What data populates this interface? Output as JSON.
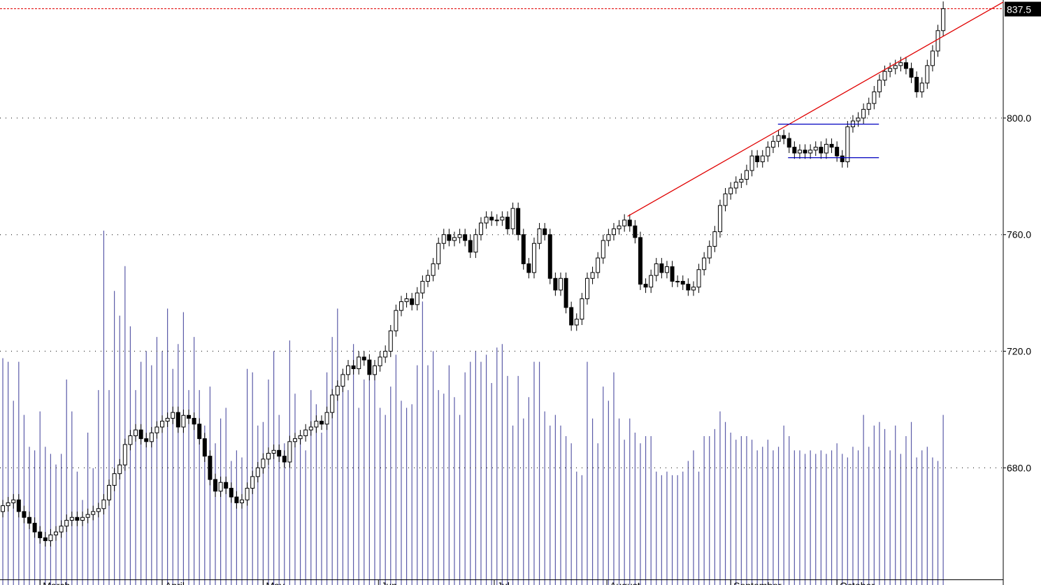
{
  "chart_data": {
    "type": "candlestick",
    "open": [
      665,
      667,
      668,
      669,
      665,
      663,
      661,
      658,
      656,
      655,
      657,
      658,
      660,
      662,
      663,
      662,
      663,
      664,
      665,
      666,
      669,
      674,
      678,
      681,
      688,
      691,
      693,
      690,
      689,
      692,
      694,
      696,
      697,
      699,
      694,
      698,
      697,
      695,
      690,
      684,
      676,
      672,
      675,
      673,
      670,
      668,
      669,
      673,
      677,
      680,
      683,
      685,
      686,
      684,
      682,
      689,
      690,
      691,
      693,
      694,
      696,
      695,
      699,
      705,
      708,
      712,
      715,
      714,
      718,
      717,
      712,
      715,
      718,
      720,
      727,
      734,
      737,
      738,
      736,
      740,
      744,
      746,
      750,
      757,
      760,
      758,
      759,
      760,
      758,
      754,
      760,
      764,
      766,
      765,
      765,
      766,
      762,
      769,
      760,
      750,
      747,
      757,
      762,
      760,
      745,
      741,
      745,
      735,
      729,
      731,
      738,
      745,
      747,
      752,
      758,
      760,
      762,
      763,
      765,
      763,
      759,
      743,
      742,
      746,
      750,
      747,
      749,
      744,
      744,
      743,
      741,
      742,
      748,
      752,
      756,
      761,
      770,
      774,
      776,
      778,
      779,
      782,
      787,
      785,
      787,
      790,
      792,
      794,
      793,
      790,
      788,
      789,
      788,
      789,
      790,
      788,
      791,
      790,
      787,
      785,
      797,
      799,
      800,
      803,
      805,
      809,
      813,
      816,
      817,
      818,
      819,
      817,
      814,
      809,
      812,
      818,
      823,
      830
    ],
    "high": [
      669,
      670,
      671,
      671,
      667,
      665,
      663,
      660,
      658,
      659,
      660,
      662,
      664,
      665,
      665,
      665,
      666,
      667,
      668,
      671,
      676,
      680,
      683,
      690,
      693,
      695,
      695,
      692,
      694,
      696,
      698,
      699,
      701,
      701,
      700,
      700,
      699,
      697,
      692,
      686,
      678,
      677,
      677,
      675,
      672,
      671,
      675,
      679,
      682,
      685,
      687,
      688,
      688,
      686,
      691,
      692,
      693,
      695,
      696,
      698,
      698,
      701,
      707,
      710,
      714,
      717,
      717,
      720,
      720,
      719,
      717,
      720,
      722,
      729,
      736,
      739,
      740,
      740,
      742,
      746,
      748,
      752,
      759,
      762,
      762,
      761,
      762,
      762,
      760,
      762,
      766,
      768,
      768,
      767,
      768,
      768,
      771,
      771,
      762,
      752,
      759,
      764,
      764,
      762,
      747,
      747,
      747,
      737,
      733,
      740,
      747,
      749,
      754,
      760,
      762,
      764,
      765,
      767,
      767,
      765,
      761,
      745,
      748,
      752,
      752,
      751,
      751,
      746,
      746,
      745,
      744,
      750,
      754,
      758,
      763,
      772,
      776,
      778,
      780,
      781,
      784,
      789,
      789,
      789,
      792,
      794,
      796,
      796,
      795,
      792,
      791,
      791,
      791,
      792,
      792,
      793,
      793,
      792,
      789,
      799,
      801,
      802,
      805,
      807,
      811,
      815,
      818,
      819,
      820,
      821,
      821,
      819,
      816,
      814,
      820,
      825,
      832,
      840
    ],
    "low": [
      663,
      665,
      666,
      663,
      661,
      659,
      656,
      654,
      653,
      653,
      655,
      656,
      658,
      660,
      660,
      660,
      661,
      662,
      663,
      664,
      667,
      672,
      676,
      679,
      686,
      689,
      688,
      687,
      687,
      690,
      692,
      694,
      695,
      692,
      692,
      695,
      693,
      688,
      682,
      674,
      670,
      670,
      671,
      668,
      666,
      666,
      667,
      671,
      675,
      678,
      681,
      683,
      682,
      680,
      680,
      687,
      688,
      689,
      691,
      692,
      693,
      693,
      697,
      703,
      706,
      710,
      712,
      712,
      715,
      710,
      710,
      713,
      716,
      718,
      725,
      732,
      735,
      734,
      734,
      738,
      742,
      744,
      748,
      755,
      756,
      756,
      757,
      756,
      752,
      752,
      758,
      762,
      763,
      763,
      763,
      760,
      760,
      758,
      748,
      745,
      745,
      755,
      758,
      743,
      739,
      739,
      733,
      727,
      727,
      729,
      736,
      743,
      745,
      750,
      756,
      758,
      760,
      761,
      761,
      757,
      741,
      740,
      740,
      744,
      745,
      745,
      742,
      742,
      741,
      739,
      739,
      740,
      746,
      750,
      754,
      759,
      768,
      772,
      774,
      776,
      777,
      780,
      783,
      783,
      785,
      788,
      790,
      791,
      788,
      786,
      786,
      786,
      786,
      787,
      786,
      786,
      788,
      785,
      783,
      783,
      795,
      797,
      798,
      801,
      803,
      807,
      811,
      814,
      815,
      816,
      815,
      812,
      807,
      807,
      810,
      816,
      821,
      828
    ],
    "close": [
      667,
      668,
      669,
      665,
      663,
      661,
      658,
      656,
      655,
      657,
      658,
      660,
      662,
      663,
      662,
      663,
      664,
      665,
      666,
      669,
      674,
      678,
      681,
      688,
      691,
      693,
      690,
      689,
      692,
      694,
      696,
      697,
      699,
      694,
      698,
      697,
      695,
      690,
      684,
      676,
      672,
      675,
      673,
      670,
      668,
      669,
      673,
      677,
      680,
      683,
      685,
      686,
      684,
      682,
      689,
      690,
      691,
      693,
      694,
      696,
      695,
      699,
      705,
      708,
      712,
      715,
      714,
      718,
      717,
      712,
      715,
      718,
      720,
      727,
      734,
      737,
      738,
      736,
      740,
      744,
      746,
      750,
      757,
      760,
      758,
      759,
      760,
      758,
      754,
      760,
      764,
      766,
      765,
      765,
      766,
      762,
      769,
      760,
      750,
      747,
      757,
      762,
      760,
      745,
      741,
      745,
      735,
      729,
      731,
      738,
      745,
      747,
      752,
      758,
      760,
      762,
      763,
      765,
      763,
      759,
      743,
      742,
      746,
      750,
      747,
      749,
      744,
      744,
      743,
      741,
      742,
      748,
      752,
      756,
      761,
      770,
      774,
      776,
      778,
      779,
      782,
      787,
      785,
      787,
      790,
      792,
      794,
      793,
      790,
      788,
      789,
      788,
      789,
      790,
      788,
      791,
      790,
      787,
      785,
      797,
      799,
      800,
      803,
      805,
      809,
      813,
      816,
      817,
      818,
      819,
      817,
      814,
      809,
      812,
      818,
      823,
      830,
      837.5
    ],
    "volume": [
      64,
      63,
      52,
      63,
      48,
      39,
      38,
      49,
      39,
      37,
      34,
      37,
      58,
      49,
      32,
      24,
      43,
      33,
      55,
      100,
      55,
      83,
      76,
      90,
      73,
      55,
      63,
      66,
      62,
      70,
      66,
      78,
      61,
      68,
      77,
      55,
      70,
      55,
      45,
      56,
      40,
      47,
      50,
      35,
      38,
      36,
      61,
      60,
      45,
      46,
      58,
      66,
      48,
      40,
      69,
      54,
      42,
      38,
      55,
      51,
      43,
      60,
      70,
      78,
      60,
      55,
      68,
      50,
      58,
      59,
      60,
      50,
      48,
      56,
      65,
      52,
      50,
      51,
      62,
      80,
      62,
      66,
      55,
      54,
      62,
      53,
      48,
      60,
      63,
      66,
      63,
      65,
      57,
      67,
      68,
      59,
      45,
      59,
      47,
      53,
      63,
      63,
      49,
      45,
      48,
      45,
      42,
      40,
      32,
      31,
      63,
      47,
      40,
      56,
      52,
      60,
      47,
      41,
      47,
      43,
      40,
      42,
      42,
      32,
      31,
      32,
      31,
      31,
      32,
      35,
      38,
      32,
      42,
      42,
      44,
      49,
      46,
      43,
      41,
      42,
      42,
      41,
      38,
      39,
      41,
      38,
      39,
      45,
      42,
      38,
      38,
      37,
      38,
      37,
      38,
      37,
      38,
      40,
      37,
      36,
      39,
      38,
      48,
      39,
      45,
      46,
      44,
      38,
      45,
      37,
      42,
      46,
      36,
      38,
      39,
      36,
      35,
      48
    ],
    "volume_lim": [
      0,
      100
    ],
    "up_color": "#ffffff",
    "down_color": "#000000",
    "volume_color": "#5b5ba8",
    "xlim": [
      -0.53,
      188.3
    ],
    "xticks": [
      {
        "value": 7,
        "label": "March"
      },
      {
        "value": 30,
        "label": "April"
      },
      {
        "value": 49,
        "label": "May"
      },
      {
        "value": 70.7,
        "label": "Jun"
      },
      {
        "value": 92.5,
        "label": "Jul"
      },
      {
        "value": 113.7,
        "label": "August"
      },
      {
        "value": 137,
        "label": "September"
      },
      {
        "value": 157,
        "label": "October"
      }
    ],
    "ylim": [
      639.8,
      840.5
    ],
    "yticks": [
      {
        "value": 680,
        "label": "680.0"
      },
      {
        "value": 720,
        "label": "720.0"
      },
      {
        "value": 760,
        "label": "760.0"
      },
      {
        "value": 800,
        "label": "800.0"
      }
    ],
    "grid": true,
    "last_price": {
      "value": 837.5,
      "label": "837.5",
      "color": "#e00000"
    },
    "trendlines": [
      {
        "x": [
          117.6,
          188.3
        ],
        "y": [
          766.3,
          839.8
        ],
        "color": "#e00000"
      },
      {
        "x": [
          145.9,
          164.9
        ],
        "y": [
          797.9,
          797.9
        ],
        "color": "#0000c0"
      },
      {
        "x": [
          147.8,
          164.9
        ],
        "y": [
          786.4,
          786.4
        ],
        "color": "#0000c0"
      }
    ]
  }
}
